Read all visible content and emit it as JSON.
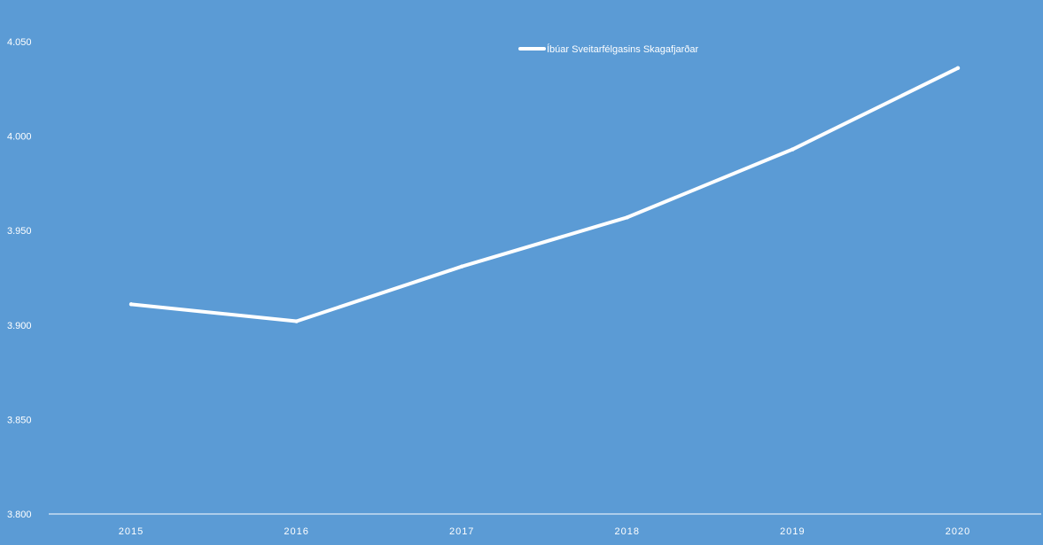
{
  "chart_data": {
    "type": "line",
    "categories": [
      "2015",
      "2016",
      "2017",
      "2018",
      "2019",
      "2020"
    ],
    "series": [
      {
        "name": "Íbúar Sveitarfélgasins Skagafjarðar",
        "values": [
          3911,
          3902,
          3931,
          3957,
          3993,
          4036
        ]
      }
    ],
    "ylim": [
      3800,
      4050
    ],
    "yticks": [
      3800,
      3850,
      3900,
      3950,
      4000,
      4050
    ],
    "ytick_labels": [
      "3.800",
      "3.850",
      "3.900",
      "3.950",
      "4.000",
      "4.050"
    ],
    "grid": false,
    "drop_lines": true,
    "legend_position": "top-center",
    "title": "",
    "xlabel": "",
    "ylabel": ""
  },
  "colors": {
    "background": "#5b9bd5",
    "line": "#ffffff",
    "text": "#ffffff"
  }
}
